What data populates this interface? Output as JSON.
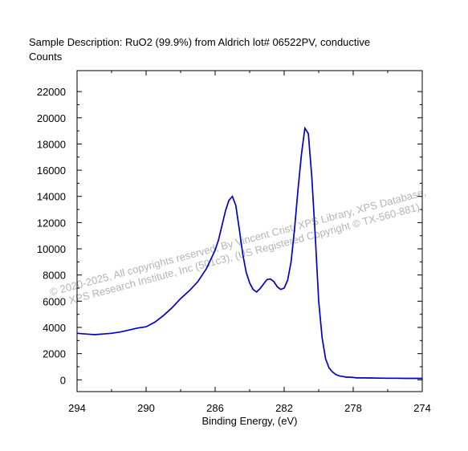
{
  "header": {
    "description": "Sample Description:  RuO2 (99.9%) from Aldrich lot# 06522PV, conductive"
  },
  "watermark": {
    "line1": "©  2020-2025,  All copyrights reserved,   By Vincent Crist,  XPS Library, XPS Database,",
    "line2": "XPS Research Institute, Inc (501c3),  (US Registered Copyright © TX-560-881)"
  },
  "colors": {
    "line": "#0000cc",
    "watermark": "#b4b4b4"
  },
  "chart_data": {
    "type": "line",
    "title": "",
    "xlabel": "Binding Energy, (eV)",
    "ylabel": "Counts",
    "xlim": [
      294,
      274
    ],
    "ylim": [
      -900,
      23600
    ],
    "x_reversed": true,
    "x_ticks": [
      294,
      290,
      286,
      282,
      278,
      274
    ],
    "y_ticks": [
      0,
      2000,
      4000,
      6000,
      8000,
      10000,
      12000,
      14000,
      16000,
      18000,
      20000,
      22000
    ],
    "grid": false,
    "series": [
      {
        "x": [
          294,
          293.5,
          293,
          292.5,
          292,
          291.5,
          291,
          290.5,
          290,
          289.5,
          289,
          288.5,
          288,
          287.5,
          287,
          286.5,
          286,
          285.8,
          285.6,
          285.4,
          285.2,
          285,
          284.8,
          284.6,
          284.4,
          284.2,
          284,
          283.8,
          283.6,
          283.4,
          283.2,
          283,
          282.8,
          282.6,
          282.4,
          282.2,
          282,
          281.8,
          281.6,
          281.4,
          281.2,
          281,
          280.8,
          280.6,
          280.4,
          280.2,
          280,
          279.8,
          279.6,
          279.4,
          279.2,
          279,
          278.8,
          278.6,
          278.4,
          278.2,
          278,
          277.8,
          277.5,
          277,
          276.5,
          276,
          275.5,
          275,
          274.5,
          274
        ],
        "y": [
          3550,
          3500,
          3450,
          3500,
          3550,
          3650,
          3800,
          3950,
          4050,
          4400,
          4900,
          5500,
          6200,
          6800,
          7500,
          8500,
          9900,
          10700,
          11800,
          12900,
          13700,
          14000,
          13300,
          11500,
          9600,
          8200,
          7400,
          6900,
          6700,
          6950,
          7300,
          7650,
          7700,
          7500,
          7100,
          6900,
          7000,
          7600,
          9000,
          11500,
          14500,
          17200,
          19200,
          18800,
          15500,
          11000,
          6000,
          3200,
          1600,
          900,
          600,
          400,
          300,
          250,
          200,
          200,
          180,
          150,
          150,
          140,
          130,
          120,
          120,
          110,
          110,
          110
        ]
      }
    ]
  }
}
